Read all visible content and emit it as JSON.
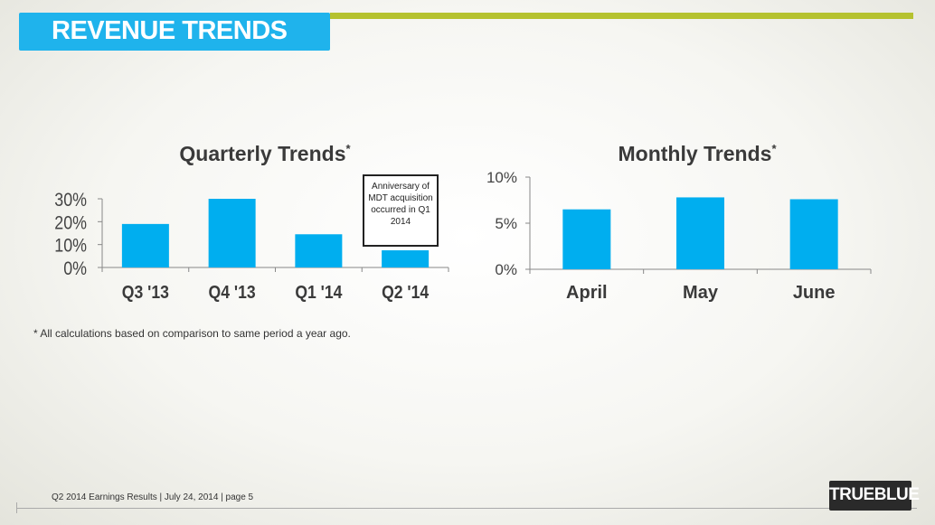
{
  "slide": {
    "title": "REVENUE TRENDS",
    "footnote": "* All calculations based on comparison to same period a year ago.",
    "footer": "Q2 2014 Earnings Results | July 24, 2014  | page 5",
    "logo_text": "TRUEBLUE"
  },
  "colors": {
    "bar": "#00aeef",
    "title_bar": "#1fb3ec",
    "accent": "#b5c22f",
    "text": "#3a3a3a"
  },
  "chart_data": [
    {
      "type": "bar",
      "title": "Quarterly Trends",
      "title_marker": "*",
      "categories": [
        "Q3 '13",
        "Q4 '13",
        "Q1 '14",
        "Q2 '14"
      ],
      "values": [
        19,
        30,
        14.5,
        7.5
      ],
      "ylim": [
        0,
        30
      ],
      "yticks": [
        "0%",
        "10%",
        "20%",
        "30%"
      ],
      "ytick_values": [
        0,
        10,
        20,
        30
      ],
      "annotation": "Anniversary of MDT acquisition occurred in Q1 2014",
      "grid": false
    },
    {
      "type": "bar",
      "title": "Monthly Trends",
      "title_marker": "*",
      "categories": [
        "April",
        "May",
        "June"
      ],
      "values": [
        6.5,
        7.8,
        7.6
      ],
      "ylim": [
        0,
        10
      ],
      "yticks": [
        "0%",
        "5%",
        "10%"
      ],
      "ytick_values": [
        0,
        5,
        10
      ],
      "grid": false
    }
  ]
}
